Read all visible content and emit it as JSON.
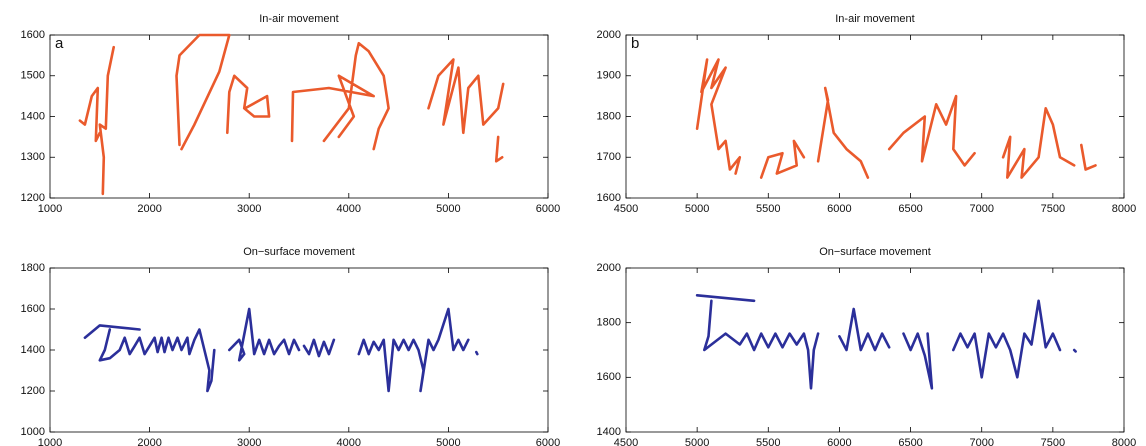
{
  "chart_data": [
    {
      "type": "line",
      "title": "In-air movement",
      "panel_label": "a",
      "x": [
        1300,
        1350,
        1420,
        1480,
        1460,
        1500,
        null,
        1530,
        1540,
        1500,
        1560,
        1580,
        1640,
        null,
        2300,
        2270,
        2300,
        2500,
        2800,
        2700,
        2450,
        2320,
        null,
        2780,
        2800,
        2850,
        2980,
        2950,
        3050,
        3200,
        3180,
        2960,
        null,
        3430,
        3440,
        3800,
        4250,
        3900,
        4050,
        3900,
        null,
        3750,
        4000,
        4070,
        4100,
        4200,
        4350,
        4400,
        4300,
        4250,
        null,
        4800,
        4900,
        5050,
        4950,
        5100,
        5150,
        5200,
        5300,
        5350,
        5500,
        5550,
        null,
        5500,
        5480,
        5540
      ],
      "series": [
        {
          "color": "#ea5a2c",
          "values": [
            1390,
            1380,
            1450,
            1470,
            1340,
            1360,
            null,
            1210,
            1300,
            1380,
            1370,
            1500,
            1570,
            null,
            1330,
            1500,
            1550,
            1600,
            1600,
            1510,
            1380,
            1320,
            null,
            1360,
            1460,
            1500,
            1470,
            1420,
            1400,
            1400,
            1450,
            1420,
            null,
            1340,
            1460,
            1470,
            1450,
            1500,
            1400,
            1350,
            null,
            1340,
            1420,
            1550,
            1580,
            1560,
            1500,
            1420,
            1370,
            1320,
            null,
            1420,
            1500,
            1540,
            1380,
            1520,
            1360,
            1470,
            1500,
            1380,
            1420,
            1480,
            null,
            1350,
            1290,
            1300
          ]
        }
      ],
      "xlim": [
        1000,
        6000
      ],
      "xticks": [
        1000,
        2000,
        3000,
        4000,
        5000,
        6000
      ],
      "ylim": [
        1200,
        1600
      ],
      "yticks": [
        1200,
        1300,
        1400,
        1500,
        1600
      ]
    },
    {
      "type": "line",
      "title": "In-air movement",
      "panel_label": "b",
      "x": [
        5000,
        5070,
        5030,
        5150,
        5100,
        5200,
        5100,
        5150,
        5200,
        5230,
        5300,
        5270,
        null,
        5450,
        5500,
        5600,
        5560,
        5700,
        5680,
        5750,
        null,
        5850,
        5920,
        5900,
        5960,
        6050,
        6150,
        6200,
        null,
        6350,
        6450,
        6600,
        6580,
        6680,
        6750,
        6820,
        6800,
        6880,
        6950,
        null,
        7150,
        7200,
        7180,
        7300,
        7280,
        7400,
        7450,
        7500,
        7550,
        7650,
        null,
        7700,
        7730,
        7800
      ],
      "series": [
        {
          "color": "#ea5a2c",
          "values": [
            1770,
            1940,
            1860,
            1940,
            1870,
            1920,
            1830,
            1720,
            1740,
            1670,
            1700,
            1660,
            null,
            1650,
            1700,
            1710,
            1660,
            1680,
            1740,
            1700,
            null,
            1690,
            1840,
            1870,
            1760,
            1720,
            1690,
            1650,
            null,
            1720,
            1760,
            1800,
            1690,
            1830,
            1780,
            1850,
            1720,
            1680,
            1710,
            null,
            1700,
            1750,
            1650,
            1720,
            1650,
            1700,
            1820,
            1780,
            1700,
            1680,
            null,
            1730,
            1670,
            1680
          ]
        }
      ],
      "xlim": [
        4500,
        8000
      ],
      "xticks": [
        4500,
        5000,
        5500,
        6000,
        6500,
        7000,
        7500,
        8000
      ],
      "ylim": [
        1600,
        2000
      ],
      "yticks": [
        1600,
        1700,
        1800,
        1900,
        2000
      ]
    },
    {
      "type": "line",
      "title": "On−surface movement",
      "x": [
        1350,
        1500,
        1900,
        null,
        1600,
        1550,
        1500,
        1600,
        1700,
        1750,
        1800,
        1850,
        1900,
        1950,
        2000,
        2050,
        2080,
        2120,
        2150,
        2190,
        2230,
        2280,
        2320,
        2380,
        2400,
        2450,
        2500,
        2550,
        2600,
        2580,
        2620,
        2650,
        null,
        2800,
        2900,
        2950,
        2900,
        3000,
        3050,
        3100,
        3150,
        3200,
        3250,
        3300,
        3350,
        3400,
        3450,
        3500,
        null,
        3550,
        3600,
        3650,
        3700,
        3750,
        3800,
        3850,
        null,
        4100,
        4150,
        4200,
        4250,
        4300,
        4350,
        4400,
        4450,
        4500,
        4550,
        4600,
        4650,
        4700,
        4750,
        4720,
        4800,
        4850,
        4900,
        5000,
        5050,
        5100,
        5150,
        5200,
        null,
        5280,
        5290
      ],
      "series": [
        {
          "color": "#2b2f9a",
          "values": [
            1460,
            1520,
            1500,
            null,
            1500,
            1400,
            1350,
            1360,
            1400,
            1460,
            1380,
            1420,
            1460,
            1380,
            1420,
            1460,
            1390,
            1460,
            1390,
            1460,
            1400,
            1460,
            1400,
            1460,
            1380,
            1450,
            1500,
            1400,
            1300,
            1200,
            1250,
            1400,
            null,
            1400,
            1450,
            1380,
            1350,
            1600,
            1380,
            1450,
            1380,
            1450,
            1380,
            1420,
            1450,
            1380,
            1450,
            1400,
            null,
            1420,
            1380,
            1450,
            1370,
            1440,
            1380,
            1450,
            null,
            1380,
            1450,
            1380,
            1440,
            1400,
            1450,
            1200,
            1450,
            1400,
            1450,
            1400,
            1450,
            1400,
            1300,
            1200,
            1450,
            1400,
            1450,
            1600,
            1400,
            1450,
            1400,
            1450,
            null,
            1390,
            1380
          ]
        }
      ],
      "xlim": [
        1000,
        6000
      ],
      "xticks": [
        1000,
        2000,
        3000,
        4000,
        5000,
        6000
      ],
      "ylim": [
        1000,
        1800
      ],
      "yticks": [
        1000,
        1200,
        1400,
        1600,
        1800
      ]
    },
    {
      "type": "line",
      "title": "On−surface movement",
      "x": [
        5000,
        5200,
        5400,
        null,
        5100,
        5080,
        5050,
        5200,
        5300,
        5350,
        5400,
        5450,
        5500,
        5550,
        5600,
        5650,
        5700,
        5750,
        5780,
        5800,
        5820,
        5850,
        null,
        6000,
        6050,
        6100,
        6150,
        6200,
        6250,
        6300,
        6350,
        null,
        6450,
        6500,
        6550,
        6600,
        6650,
        6620,
        null,
        6800,
        6850,
        6900,
        6950,
        7000,
        7050,
        7100,
        7150,
        7200,
        7250,
        7300,
        7350,
        7400,
        7450,
        7500,
        7550,
        null,
        7650,
        7660
      ],
      "series": [
        {
          "color": "#2b2f9a",
          "values": [
            1900,
            1890,
            1880,
            null,
            1880,
            1750,
            1700,
            1760,
            1720,
            1760,
            1700,
            1760,
            1710,
            1760,
            1710,
            1760,
            1720,
            1760,
            1700,
            1560,
            1700,
            1760,
            null,
            1750,
            1700,
            1850,
            1700,
            1760,
            1700,
            1760,
            1710,
            null,
            1760,
            1700,
            1760,
            1680,
            1560,
            1760,
            null,
            1700,
            1760,
            1710,
            1760,
            1600,
            1760,
            1710,
            1760,
            1700,
            1600,
            1760,
            1720,
            1880,
            1710,
            1760,
            1700,
            null,
            1700,
            1695
          ]
        }
      ],
      "xlim": [
        4500,
        8000
      ],
      "xticks": [
        4500,
        5000,
        5500,
        6000,
        6500,
        7000,
        7500,
        8000
      ],
      "ylim": [
        1400,
        2000
      ],
      "yticks": [
        1400,
        1600,
        1800,
        2000
      ]
    }
  ]
}
